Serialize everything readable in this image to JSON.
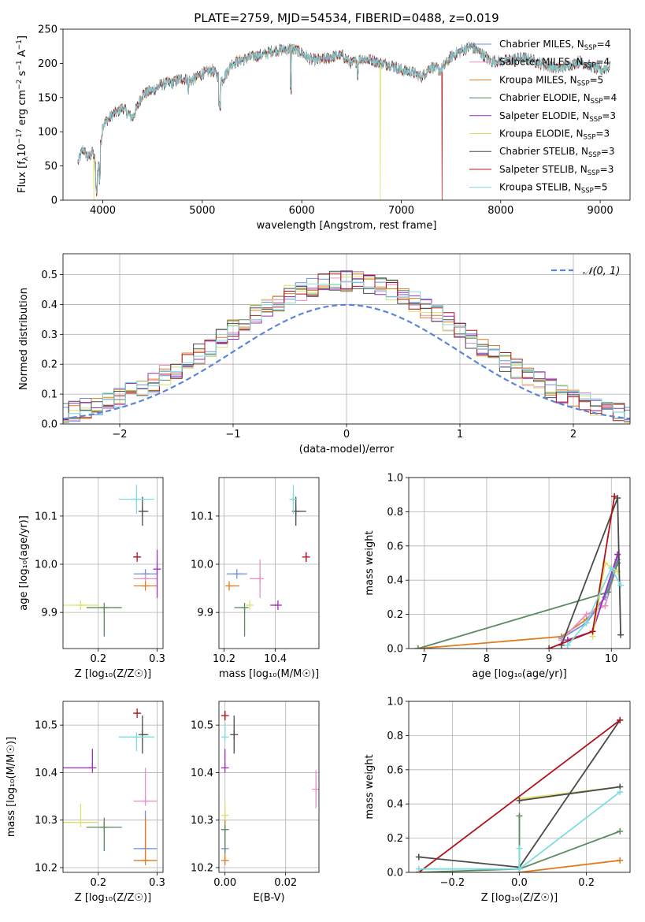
{
  "figure": {
    "title": "PLATE=2759, MJD=54534, FIBERID=0488, z=0.019"
  },
  "colors": {
    "Chabrier MILES": "#6a8fe6",
    "Salpeter MILES": "#e88fc5",
    "Kroupa MILES": "#e07b1f",
    "Chabrier ELODIE": "#5a8a5e",
    "Salpeter ELODIE": "#9b2fb8",
    "Kroupa ELODIE": "#dde06a",
    "Chabrier STELIB": "#4a4a4a",
    "Salpeter STELIB": "#b0141a",
    "Kroupa STELIB": "#7fdce0",
    "normal": "#5b86d6"
  },
  "chart_data": [
    {
      "type": "line",
      "name": "spectrum",
      "xlabel": "wavelength [Angstrom, rest frame]",
      "ylabel_text": "Flux [f",
      "ylabel_sub": "λ",
      "ylabel_rest": "10",
      "ylabel_sup1": "−17",
      "ylabel_tail": " erg cm",
      "ylabel_sup2": "−2",
      "ylabel_s": " s",
      "ylabel_sup3": "−1",
      "ylabel_a": " A",
      "ylabel_sup4": "−1",
      "ylabel_end": "]",
      "xlim": [
        3600,
        9300
      ],
      "ylim": [
        0,
        250
      ],
      "xticks": [
        4000,
        5000,
        6000,
        7000,
        8000,
        9000
      ],
      "yticks": [
        0,
        50,
        100,
        150,
        200,
        250
      ],
      "continuum_x": [
        3750,
        3800,
        3850,
        3900,
        3950,
        4000,
        4100,
        4200,
        4300,
        4400,
        4500,
        4600,
        4700,
        4800,
        4900,
        5000,
        5100,
        5200,
        5300,
        5400,
        5500,
        5600,
        5700,
        5800,
        5900,
        6000,
        6100,
        6200,
        6300,
        6400,
        6500,
        6600,
        6700,
        6800,
        6900,
        7000,
        7100,
        7200,
        7300,
        7400,
        7500,
        7600,
        7700,
        7800,
        7900,
        8000,
        8100,
        8200,
        8300,
        8400,
        8500,
        8600,
        8700,
        8800,
        8900,
        9000,
        9100
      ],
      "continuum_y": [
        55,
        75,
        62,
        70,
        40,
        110,
        125,
        135,
        120,
        155,
        160,
        170,
        172,
        178,
        175,
        185,
        190,
        175,
        200,
        205,
        210,
        212,
        218,
        220,
        222,
        215,
        205,
        205,
        210,
        212,
        200,
        207,
        205,
        200,
        198,
        190,
        188,
        180,
        195,
        190,
        210,
        218,
        225,
        215,
        203,
        203,
        205,
        208,
        206,
        200,
        195,
        193,
        198,
        203,
        196,
        190,
        195
      ],
      "dips": [
        {
          "series": "Kroupa ELODIE",
          "x": 6790,
          "y": 0
        },
        {
          "series": "Salpeter STELIB",
          "x": 7410,
          "y": 0
        },
        {
          "series": "Kroupa ELODIE",
          "x": 3910,
          "y": 0
        }
      ],
      "legend": [
        {
          "series": "Chabrier MILES",
          "pre": "Chabrier MILES, N",
          "sub": "SSP",
          "post": "=4"
        },
        {
          "series": "Salpeter MILES",
          "pre": "Salpeter MILES, N",
          "sub": "SSP",
          "post": "=4"
        },
        {
          "series": "Kroupa MILES",
          "pre": "Kroupa MILES, N",
          "sub": "SSP",
          "post": "=5"
        },
        {
          "series": "Chabrier ELODIE",
          "pre": "Chabrier ELODIE, N",
          "sub": "SSP",
          "post": "=4"
        },
        {
          "series": "Salpeter ELODIE",
          "pre": "Salpeter ELODIE, N",
          "sub": "SSP",
          "post": "=3"
        },
        {
          "series": "Kroupa ELODIE",
          "pre": "Kroupa ELODIE, N",
          "sub": "SSP",
          "post": "=3"
        },
        {
          "series": "Chabrier STELIB",
          "pre": "Chabrier STELIB, N",
          "sub": "SSP",
          "post": "=3"
        },
        {
          "series": "Salpeter STELIB",
          "pre": "Salpeter STELIB, N",
          "sub": "SSP",
          "post": "=3"
        },
        {
          "series": "Kroupa STELIB",
          "pre": "Kroupa STELIB, N",
          "sub": "SSP",
          "post": "=5"
        }
      ]
    },
    {
      "type": "histogram",
      "name": "residuals",
      "xlabel": "(data-model)/error",
      "ylabel": "Normed distribution",
      "xlim": [
        -2.5,
        2.5
      ],
      "ylim": [
        0,
        0.57
      ],
      "xticks": [
        -2,
        -1,
        0,
        1,
        2
      ],
      "yticks": [
        0.0,
        0.1,
        0.2,
        0.3,
        0.4,
        0.5
      ],
      "legend_label": "𝒩(0, 1)",
      "bin_width": 0.1,
      "grid": true
    },
    {
      "type": "scatter",
      "name": "age-vs-Z",
      "xlabel": "Z [log₁₀(Z/Z☉)]",
      "ylabel": "age  [log₁₀(age/yr)]",
      "xlim": [
        0.14,
        0.31
      ],
      "ylim": [
        9.825,
        10.18
      ],
      "xticks": [
        0.2,
        0.3
      ],
      "yticks": [
        9.9,
        10.0,
        10.1
      ],
      "points": [
        {
          "series": "Chabrier MILES",
          "x": 0.28,
          "y": 9.98,
          "xerr": [
            0.02,
            0.02
          ],
          "yerr": [
            0.0,
            0.0
          ]
        },
        {
          "series": "Salpeter MILES",
          "x": 0.28,
          "y": 9.97,
          "xerr": [
            0.02,
            0.02
          ],
          "yerr": [
            0.0,
            0.0
          ]
        },
        {
          "series": "Kroupa MILES",
          "x": 0.28,
          "y": 9.955,
          "xerr": [
            0.02,
            0.02
          ],
          "yerr": [
            0.0,
            0.0
          ]
        },
        {
          "series": "Chabrier ELODIE",
          "x": 0.21,
          "y": 9.91,
          "xerr": [
            0.03,
            0.03
          ],
          "yerr": [
            0.06,
            0.0
          ]
        },
        {
          "series": "Salpeter ELODIE",
          "x": 0.3,
          "y": 9.99,
          "xerr": [
            0.0,
            0.0
          ],
          "yerr": [
            0.06,
            0.04
          ]
        },
        {
          "series": "Kroupa ELODIE",
          "x": 0.17,
          "y": 9.915,
          "xerr": [
            0.03,
            0.03
          ],
          "yerr": [
            0.0,
            0.0
          ]
        },
        {
          "series": "Chabrier STELIB",
          "x": 0.275,
          "y": 10.11,
          "xerr": [
            0.0,
            0.01
          ],
          "yerr": [
            0.03,
            0.03
          ]
        },
        {
          "series": "Salpeter STELIB",
          "x": 0.266,
          "y": 10.015,
          "xerr": [
            0.005,
            0.005
          ],
          "yerr": [
            0.0,
            0.0
          ]
        },
        {
          "series": "Kroupa STELIB",
          "x": 0.265,
          "y": 10.135,
          "xerr": [
            0.03,
            0.03
          ],
          "yerr": [
            0.03,
            0.03
          ]
        }
      ]
    },
    {
      "type": "scatter",
      "name": "age-vs-mass",
      "xlabel": "mass [log₁₀(M/M☉)]",
      "ylabel": "",
      "xlim": [
        10.18,
        10.57
      ],
      "ylim": [
        9.825,
        10.18
      ],
      "xticks": [
        10.2,
        10.4
      ],
      "yticks": [
        9.9,
        10.0,
        10.1
      ],
      "points": [
        {
          "series": "Chabrier MILES",
          "x": 10.25,
          "y": 9.98,
          "xerr": [
            0.04,
            0.04
          ],
          "yerr": [
            0.0,
            0.0
          ]
        },
        {
          "series": "Salpeter MILES",
          "x": 10.34,
          "y": 9.97,
          "xerr": [
            0.04,
            0.0
          ],
          "yerr": [
            0.04,
            0.04
          ]
        },
        {
          "series": "Kroupa MILES",
          "x": 10.22,
          "y": 9.955,
          "xerr": [
            0.0,
            0.04
          ],
          "yerr": [
            0.0,
            0.0
          ]
        },
        {
          "series": "Chabrier ELODIE",
          "x": 10.28,
          "y": 9.91,
          "xerr": [
            0.04,
            0.0
          ],
          "yerr": [
            0.06,
            0.0
          ]
        },
        {
          "series": "Salpeter ELODIE",
          "x": 10.41,
          "y": 9.915,
          "xerr": [
            0.03,
            0.0
          ],
          "yerr": [
            0.0,
            0.0
          ]
        },
        {
          "series": "Kroupa ELODIE",
          "x": 10.3,
          "y": 9.915,
          "xerr": [
            0.0,
            0.0
          ],
          "yerr": [
            0.0,
            0.0
          ]
        },
        {
          "series": "Chabrier STELIB",
          "x": 10.48,
          "y": 10.11,
          "xerr": [
            0.0,
            0.04
          ],
          "yerr": [
            0.03,
            0.03
          ]
        },
        {
          "series": "Salpeter STELIB",
          "x": 10.52,
          "y": 10.015,
          "xerr": [
            0.0,
            0.0
          ],
          "yerr": [
            0.01,
            0.01
          ]
        },
        {
          "series": "Kroupa STELIB",
          "x": 10.47,
          "y": 10.135,
          "xerr": [
            0.01,
            0.01
          ],
          "yerr": [
            0.03,
            0.03
          ]
        }
      ]
    },
    {
      "type": "line",
      "name": "weight-vs-age",
      "xlabel": "age  [log₁₀(age/yr)]",
      "ylabel": "mass weight",
      "xlim": [
        6.75,
        10.3
      ],
      "ylim": [
        0,
        1
      ],
      "xticks": [
        7,
        8,
        9,
        10
      ],
      "yticks": [
        0.0,
        0.2,
        0.4,
        0.6,
        0.8,
        1.0
      ],
      "series": [
        {
          "series": "Kroupa MILES",
          "x": [
            6.9,
            9.2,
            9.6,
            9.9,
            10.1
          ],
          "y": [
            0.0,
            0.07,
            0.17,
            0.3,
            0.55
          ]
        },
        {
          "series": "Chabrier MILES",
          "x": [
            9.2,
            9.6,
            9.9,
            10.1
          ],
          "y": [
            0.06,
            0.15,
            0.3,
            0.52
          ]
        },
        {
          "series": "Salpeter MILES",
          "x": [
            9.2,
            9.6,
            9.9,
            10.1
          ],
          "y": [
            0.05,
            0.2,
            0.25,
            0.5
          ]
        },
        {
          "series": "Chabrier ELODIE",
          "x": [
            6.9,
            9.95,
            10.1
          ],
          "y": [
            0.0,
            0.33,
            0.5
          ]
        },
        {
          "series": "Salpeter ELODIE",
          "x": [
            9.3,
            9.7,
            10.1
          ],
          "y": [
            0.05,
            0.1,
            0.55
          ]
        },
        {
          "series": "Kroupa ELODIE",
          "x": [
            9.7,
            9.9,
            10.1
          ],
          "y": [
            0.07,
            0.5,
            0.45
          ]
        },
        {
          "series": "Chabrier STELIB",
          "x": [
            9.2,
            10.1,
            10.15
          ],
          "y": [
            0.02,
            0.88,
            0.08
          ]
        },
        {
          "series": "Salpeter STELIB",
          "x": [
            9.0,
            9.7,
            10.05
          ],
          "y": [
            0.0,
            0.1,
            0.89
          ]
        },
        {
          "series": "Kroupa STELIB",
          "x": [
            9.3,
            9.6,
            10.0,
            10.15
          ],
          "y": [
            0.02,
            0.15,
            0.47,
            0.37
          ]
        }
      ]
    },
    {
      "type": "scatter",
      "name": "mass-vs-Z",
      "xlabel": "Z [log₁₀(Z/Z☉)]",
      "ylabel": "mass [log₁₀(M/M☉)]",
      "xlim": [
        0.14,
        0.31
      ],
      "ylim": [
        10.19,
        10.55
      ],
      "xticks": [
        0.2,
        0.3
      ],
      "yticks": [
        10.2,
        10.3,
        10.4,
        10.5
      ],
      "points": [
        {
          "series": "Chabrier MILES",
          "x": 0.28,
          "y": 10.24,
          "xerr": [
            0.02,
            0.02
          ],
          "yerr": [
            0.0,
            0.08
          ]
        },
        {
          "series": "Salpeter MILES",
          "x": 0.28,
          "y": 10.34,
          "xerr": [
            0.02,
            0.02
          ],
          "yerr": [
            0.0,
            0.07
          ]
        },
        {
          "series": "Kroupa MILES",
          "x": 0.28,
          "y": 10.215,
          "xerr": [
            0.02,
            0.02
          ],
          "yerr": [
            0.0,
            0.09
          ]
        },
        {
          "series": "Chabrier ELODIE",
          "x": 0.21,
          "y": 10.285,
          "xerr": [
            0.03,
            0.03
          ],
          "yerr": [
            0.05,
            0.02
          ]
        },
        {
          "series": "Salpeter ELODIE",
          "x": 0.19,
          "y": 10.41,
          "xerr": [
            0.05,
            0.0
          ],
          "yerr": [
            0.0,
            0.04
          ]
        },
        {
          "series": "Kroupa ELODIE",
          "x": 0.17,
          "y": 10.295,
          "xerr": [
            0.03,
            0.03
          ],
          "yerr": [
            0.0,
            0.04
          ]
        },
        {
          "series": "Chabrier STELIB",
          "x": 0.275,
          "y": 10.48,
          "xerr": [
            0.0,
            0.01
          ],
          "yerr": [
            0.04,
            0.04
          ]
        },
        {
          "series": "Salpeter STELIB",
          "x": 0.266,
          "y": 10.525,
          "xerr": [
            0.005,
            0.005
          ],
          "yerr": [
            0.0,
            0.0
          ]
        },
        {
          "series": "Kroupa STELIB",
          "x": 0.265,
          "y": 10.475,
          "xerr": [
            0.03,
            0.03
          ],
          "yerr": [
            0.03,
            0.0
          ]
        }
      ]
    },
    {
      "type": "scatter",
      "name": "mass-vs-ebv",
      "xlabel": "E(B-V)",
      "ylabel": "",
      "xlim": [
        -0.002,
        0.031
      ],
      "ylim": [
        10.19,
        10.55
      ],
      "xticks": [
        0.0,
        0.02
      ],
      "yticks": [
        10.2,
        10.3,
        10.4,
        10.5
      ],
      "points": [
        {
          "series": "Chabrier MILES",
          "x": 0.0,
          "y": 10.24,
          "xerr": [
            0.0,
            0.0
          ],
          "yerr": [
            0.0,
            0.08
          ]
        },
        {
          "series": "Salpeter MILES",
          "x": 0.03,
          "y": 10.365,
          "xerr": [
            0.0,
            0.0
          ],
          "yerr": [
            0.04,
            0.04
          ]
        },
        {
          "series": "Kroupa MILES",
          "x": 0.0,
          "y": 10.215,
          "xerr": [
            0.0,
            0.0
          ],
          "yerr": [
            0.0,
            0.09
          ]
        },
        {
          "series": "Chabrier ELODIE",
          "x": 0.0,
          "y": 10.28,
          "xerr": [
            0.0,
            0.0
          ],
          "yerr": [
            0.05,
            0.0
          ]
        },
        {
          "series": "Salpeter ELODIE",
          "x": 0.0,
          "y": 10.41,
          "xerr": [
            0.0,
            0.0
          ],
          "yerr": [
            0.0,
            0.04
          ]
        },
        {
          "series": "Kroupa ELODIE",
          "x": 0.0,
          "y": 10.31,
          "xerr": [
            0.0,
            0.0
          ],
          "yerr": [
            0.0,
            0.03
          ]
        },
        {
          "series": "Chabrier STELIB",
          "x": 0.003,
          "y": 10.48,
          "xerr": [
            0.0,
            0.0
          ],
          "yerr": [
            0.04,
            0.04
          ]
        },
        {
          "series": "Salpeter STELIB",
          "x": 0.0,
          "y": 10.52,
          "xerr": [
            0.0,
            0.0
          ],
          "yerr": [
            0.01,
            0.01
          ]
        },
        {
          "series": "Kroupa STELIB",
          "x": 0.0,
          "y": 10.475,
          "xerr": [
            0.0,
            0.0
          ],
          "yerr": [
            0.0,
            0.03
          ]
        }
      ]
    },
    {
      "type": "line",
      "name": "weight-vs-Z",
      "xlabel": "Z [log₁₀(Z/Z☉)]",
      "ylabel": "mass weight",
      "xlim": [
        -0.33,
        0.33
      ],
      "ylim": [
        0,
        1
      ],
      "xticks": [
        -0.2,
        0.0,
        0.2
      ],
      "yticks": [
        0.0,
        0.2,
        0.4,
        0.6,
        0.8,
        1.0
      ],
      "series": [
        {
          "series": "Kroupa MILES",
          "x": [
            0.0,
            0.3
          ],
          "y": [
            0.0,
            0.07
          ]
        },
        {
          "series": "Chabrier ELODIE",
          "x": [
            -0.3,
            0.0,
            0.3
          ],
          "y": [
            0.0,
            0.02,
            0.24
          ]
        },
        {
          "series": "Chabrier ELODIE",
          "x": [
            0.0,
            0.0
          ],
          "y": [
            0.02,
            0.33
          ]
        },
        {
          "series": "Kroupa ELODIE",
          "x": [
            0.0,
            0.3
          ],
          "y": [
            0.43,
            0.5
          ]
        },
        {
          "series": "Chabrier STELIB",
          "x": [
            -0.3,
            0.0,
            0.3
          ],
          "y": [
            0.09,
            0.03,
            0.89
          ]
        },
        {
          "series": "Chabrier STELIB",
          "x": [
            0.0,
            0.3
          ],
          "y": [
            0.42,
            0.5
          ]
        },
        {
          "series": "Salpeter STELIB",
          "x": [
            -0.3,
            0.3
          ],
          "y": [
            0.0,
            0.89
          ]
        },
        {
          "series": "Kroupa STELIB",
          "x": [
            -0.3,
            0.0,
            0.3
          ],
          "y": [
            0.02,
            0.02,
            0.47
          ]
        },
        {
          "series": "Kroupa STELIB",
          "x": [
            0.0,
            0.0
          ],
          "y": [
            0.02,
            0.14
          ]
        }
      ]
    }
  ]
}
